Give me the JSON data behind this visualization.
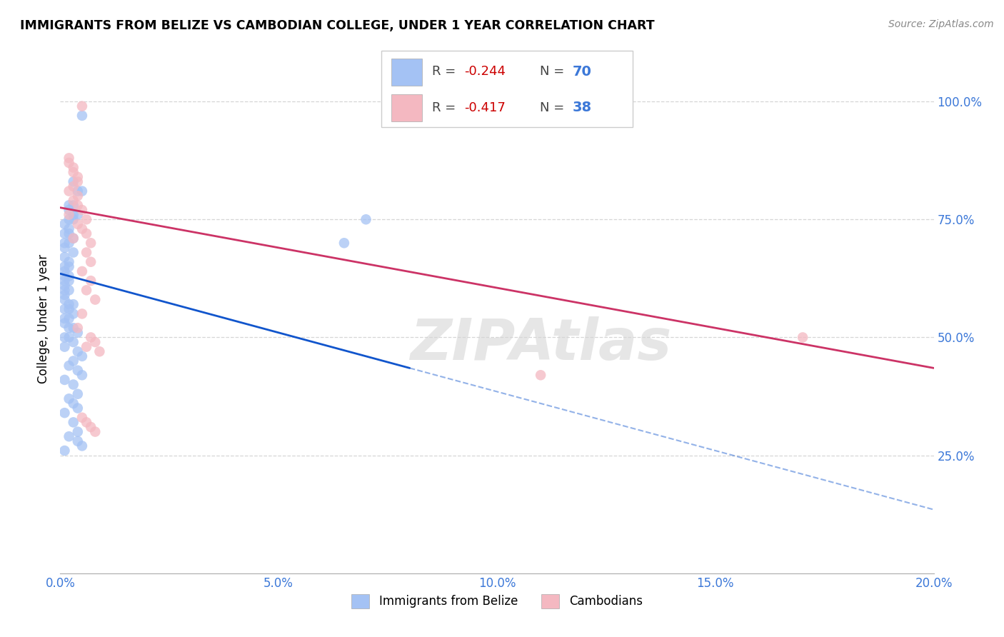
{
  "title": "IMMIGRANTS FROM BELIZE VS CAMBODIAN COLLEGE, UNDER 1 YEAR CORRELATION CHART",
  "source": "Source: ZipAtlas.com",
  "ylabel": "College, Under 1 year",
  "watermark": "ZIPAtlas",
  "blue_color": "#a4c2f4",
  "pink_color": "#f4b8c1",
  "blue_line_color": "#1155cc",
  "pink_line_color": "#cc3366",
  "blue_scatter": [
    [
      0.005,
      0.97
    ],
    [
      0.003,
      0.83
    ],
    [
      0.004,
      0.81
    ],
    [
      0.005,
      0.81
    ],
    [
      0.002,
      0.78
    ],
    [
      0.003,
      0.78
    ],
    [
      0.002,
      0.77
    ],
    [
      0.003,
      0.76
    ],
    [
      0.004,
      0.76
    ],
    [
      0.002,
      0.75
    ],
    [
      0.003,
      0.75
    ],
    [
      0.001,
      0.74
    ],
    [
      0.002,
      0.73
    ],
    [
      0.001,
      0.72
    ],
    [
      0.002,
      0.72
    ],
    [
      0.003,
      0.71
    ],
    [
      0.001,
      0.7
    ],
    [
      0.002,
      0.7
    ],
    [
      0.001,
      0.69
    ],
    [
      0.003,
      0.68
    ],
    [
      0.001,
      0.67
    ],
    [
      0.002,
      0.66
    ],
    [
      0.001,
      0.65
    ],
    [
      0.002,
      0.65
    ],
    [
      0.001,
      0.64
    ],
    [
      0.001,
      0.63
    ],
    [
      0.002,
      0.63
    ],
    [
      0.001,
      0.62
    ],
    [
      0.002,
      0.62
    ],
    [
      0.001,
      0.61
    ],
    [
      0.001,
      0.6
    ],
    [
      0.002,
      0.6
    ],
    [
      0.001,
      0.59
    ],
    [
      0.001,
      0.58
    ],
    [
      0.002,
      0.57
    ],
    [
      0.003,
      0.57
    ],
    [
      0.001,
      0.56
    ],
    [
      0.002,
      0.56
    ],
    [
      0.003,
      0.55
    ],
    [
      0.001,
      0.54
    ],
    [
      0.002,
      0.54
    ],
    [
      0.001,
      0.53
    ],
    [
      0.002,
      0.52
    ],
    [
      0.003,
      0.52
    ],
    [
      0.004,
      0.51
    ],
    [
      0.001,
      0.5
    ],
    [
      0.002,
      0.5
    ],
    [
      0.003,
      0.49
    ],
    [
      0.001,
      0.48
    ],
    [
      0.004,
      0.47
    ],
    [
      0.005,
      0.46
    ],
    [
      0.003,
      0.45
    ],
    [
      0.002,
      0.44
    ],
    [
      0.004,
      0.43
    ],
    [
      0.005,
      0.42
    ],
    [
      0.001,
      0.41
    ],
    [
      0.003,
      0.4
    ],
    [
      0.004,
      0.38
    ],
    [
      0.002,
      0.37
    ],
    [
      0.003,
      0.36
    ],
    [
      0.004,
      0.35
    ],
    [
      0.001,
      0.34
    ],
    [
      0.003,
      0.32
    ],
    [
      0.004,
      0.3
    ],
    [
      0.002,
      0.29
    ],
    [
      0.004,
      0.28
    ],
    [
      0.005,
      0.27
    ],
    [
      0.001,
      0.26
    ],
    [
      0.07,
      0.75
    ],
    [
      0.065,
      0.7
    ]
  ],
  "pink_scatter": [
    [
      0.005,
      0.99
    ],
    [
      0.002,
      0.88
    ],
    [
      0.002,
      0.87
    ],
    [
      0.003,
      0.86
    ],
    [
      0.003,
      0.85
    ],
    [
      0.004,
      0.84
    ],
    [
      0.004,
      0.83
    ],
    [
      0.003,
      0.82
    ],
    [
      0.002,
      0.81
    ],
    [
      0.004,
      0.8
    ],
    [
      0.003,
      0.79
    ],
    [
      0.004,
      0.78
    ],
    [
      0.005,
      0.77
    ],
    [
      0.002,
      0.76
    ],
    [
      0.006,
      0.75
    ],
    [
      0.004,
      0.74
    ],
    [
      0.005,
      0.73
    ],
    [
      0.006,
      0.72
    ],
    [
      0.003,
      0.71
    ],
    [
      0.007,
      0.7
    ],
    [
      0.006,
      0.68
    ],
    [
      0.007,
      0.66
    ],
    [
      0.005,
      0.64
    ],
    [
      0.007,
      0.62
    ],
    [
      0.006,
      0.6
    ],
    [
      0.008,
      0.58
    ],
    [
      0.005,
      0.55
    ],
    [
      0.004,
      0.52
    ],
    [
      0.007,
      0.5
    ],
    [
      0.008,
      0.49
    ],
    [
      0.006,
      0.48
    ],
    [
      0.009,
      0.47
    ],
    [
      0.005,
      0.33
    ],
    [
      0.006,
      0.32
    ],
    [
      0.007,
      0.31
    ],
    [
      0.008,
      0.3
    ],
    [
      0.17,
      0.5
    ],
    [
      0.11,
      0.42
    ]
  ],
  "blue_trendline_solid": [
    [
      0.0,
      0.635
    ],
    [
      0.08,
      0.435
    ]
  ],
  "blue_trendline_dashed": [
    [
      0.08,
      0.435
    ],
    [
      0.2,
      0.135
    ]
  ],
  "pink_trendline": [
    [
      0.0,
      0.775
    ],
    [
      0.2,
      0.435
    ]
  ],
  "xlim": [
    0.0,
    0.2
  ],
  "ylim": [
    0.0,
    1.08
  ],
  "xticks": [
    0.0,
    0.05,
    0.1,
    0.15,
    0.2
  ],
  "xticklabels": [
    "0.0%",
    "5.0%",
    "10.0%",
    "15.0%",
    "20.0%"
  ],
  "right_yticks": [
    0.25,
    0.5,
    0.75,
    1.0
  ],
  "right_yticklabels": [
    "25.0%",
    "50.0%",
    "75.0%",
    "100.0%"
  ],
  "grid_lines": [
    0.25,
    0.5,
    0.75,
    1.0
  ]
}
